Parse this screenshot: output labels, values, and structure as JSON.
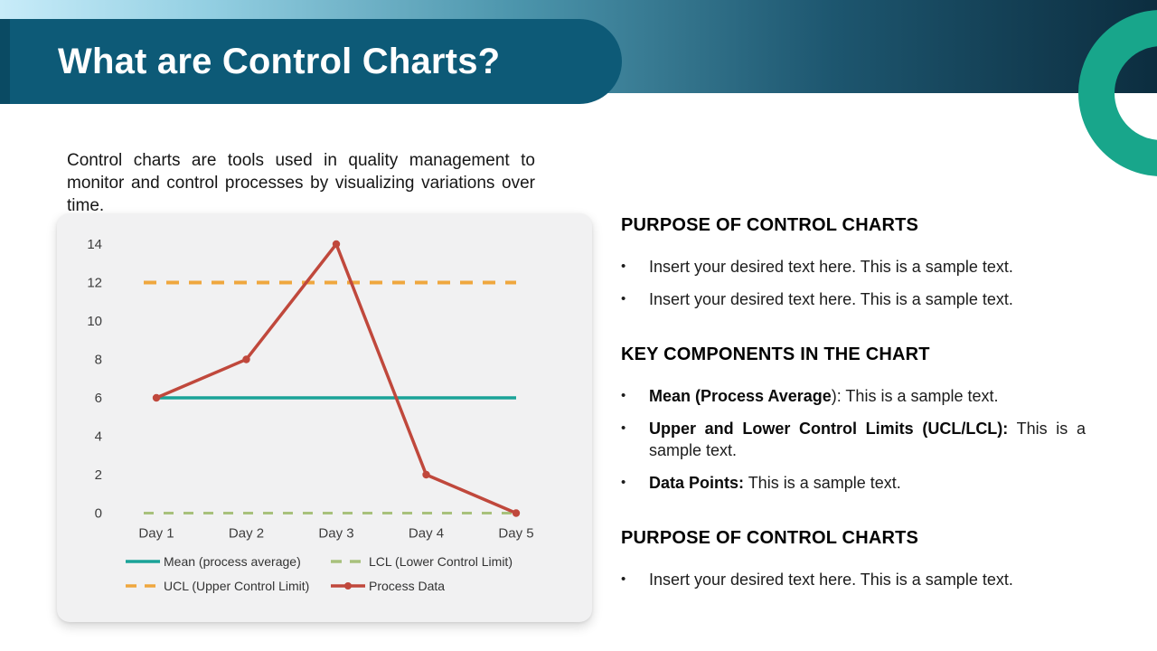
{
  "slide": {
    "title": "What are Control Charts?",
    "intro": "Control charts are tools used in quality management to monitor and control processes by visualizing variations over time."
  },
  "colors": {
    "banner": "#0d5a77",
    "banner_edge": "#0a4a63",
    "band_gradient_start": "#c8ecf9",
    "band_gradient_end": "#0c2d3f",
    "ring_teal": "#18a68b",
    "card_background": "#f1f1f2",
    "mean_teal": "#1aa398",
    "ucl_orange": "#efa73e",
    "lcl_olive": "#a8c17c",
    "process_red": "#c0483c"
  },
  "chart_data": {
    "type": "line",
    "title": "",
    "xlabel": "",
    "ylabel": "",
    "categories": [
      "Day 1",
      "Day 2",
      "Day 3",
      "Day 4",
      "Day 5"
    ],
    "series": [
      {
        "name": "Mean (process average)",
        "values": [
          6,
          6,
          6,
          6,
          6
        ],
        "color": "#1aa398",
        "dash": null,
        "marker": false,
        "width": 3.5,
        "extend": false
      },
      {
        "name": "UCL (Upper Control Limit)",
        "values": [
          12,
          12,
          12,
          12,
          12
        ],
        "color": "#efa73e",
        "dash": "14 11",
        "marker": false,
        "width": 4,
        "extend": true
      },
      {
        "name": "LCL (Lower Control Limit)",
        "values": [
          0,
          0,
          0,
          0,
          0
        ],
        "color": "#a8c17c",
        "dash": "11 11",
        "marker": false,
        "width": 3,
        "extend": true
      },
      {
        "name": "Process Data",
        "values": [
          6,
          8,
          14,
          2,
          0
        ],
        "color": "#c0483c",
        "dash": null,
        "marker": true,
        "width": 3.5,
        "extend": false
      }
    ],
    "ylim": [
      0,
      14
    ],
    "ytick_step": 2,
    "grid": false,
    "legend_position": "bottom",
    "legend_rows": [
      [
        0,
        2
      ],
      [
        1,
        3
      ]
    ]
  },
  "right_column": {
    "sections": [
      {
        "heading": "PURPOSE OF CONTROL CHARTS",
        "bullets": [
          {
            "bold": "",
            "text": "Insert your desired text here. This is a sample text."
          },
          {
            "bold": "",
            "text": "Insert your desired text here. This is a sample text."
          }
        ]
      },
      {
        "heading": "KEY COMPONENTS IN THE CHART",
        "bullets": [
          {
            "bold": "Mean (Process Average",
            "text": "): This is a sample text."
          },
          {
            "bold": "Upper and Lower Control Limits (UCL/LCL):",
            "text": " This is a sample text."
          },
          {
            "bold": "Data Points:",
            "text": " This is a sample text."
          }
        ]
      },
      {
        "heading": "PURPOSE OF CONTROL CHARTS",
        "bullets": [
          {
            "bold": "",
            "text": "Insert your desired text here. This is a sample text."
          }
        ]
      }
    ]
  }
}
